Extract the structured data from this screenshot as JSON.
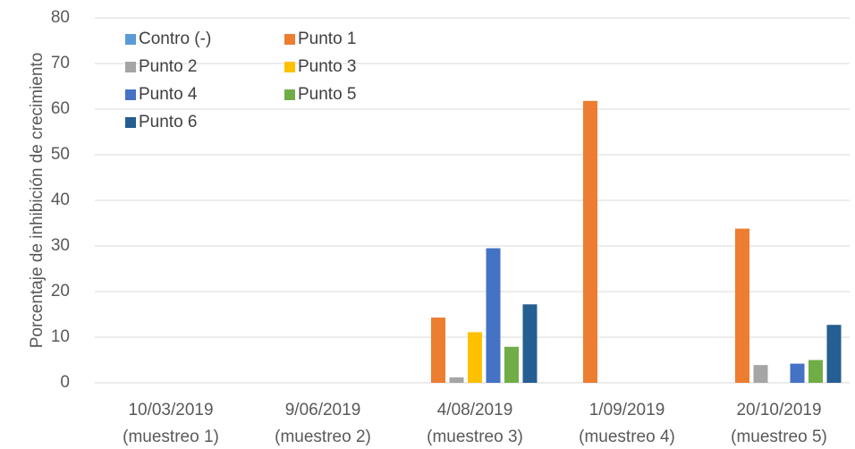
{
  "chart_data": {
    "type": "bar",
    "y_label": "Porcentaje de inhibición de crecimiento",
    "categories": [
      [
        "10/03/2019",
        "(muestreo 1)"
      ],
      [
        "9/06/2019",
        "(muestreo 2)"
      ],
      [
        "4/08/2019",
        "(muestreo 3)"
      ],
      [
        "1/09/2019",
        "(muestreo 4)"
      ],
      [
        "20/10/2019",
        "(muestreo 5)"
      ]
    ],
    "series": [
      {
        "name": "Contro (-)",
        "color": "#5b9bd5",
        "values": [
          0,
          0,
          0,
          0,
          0
        ]
      },
      {
        "name": "Punto 1",
        "color": "#ed7d31",
        "values": [
          0,
          0,
          14.3,
          61.8,
          33.8
        ]
      },
      {
        "name": "Punto 2",
        "color": "#a5a5a5",
        "values": [
          0,
          0,
          1.2,
          0,
          3.9
        ]
      },
      {
        "name": "Punto 3",
        "color": "#ffc000",
        "values": [
          0,
          0,
          11.1,
          0,
          0
        ]
      },
      {
        "name": "Punto 4",
        "color": "#4472c4",
        "values": [
          0,
          0,
          29.5,
          0,
          4.2
        ]
      },
      {
        "name": "Punto 5",
        "color": "#70ad47",
        "values": [
          0,
          0,
          7.9,
          0,
          5.0
        ]
      },
      {
        "name": "Punto 6",
        "color": "#255e91",
        "values": [
          0,
          0,
          17.2,
          0,
          12.7
        ]
      }
    ],
    "ylim": [
      0,
      80
    ],
    "yticks": [
      0,
      10,
      20,
      30,
      40,
      50,
      60,
      70,
      80
    ],
    "grid": true,
    "legend": "top-left"
  }
}
